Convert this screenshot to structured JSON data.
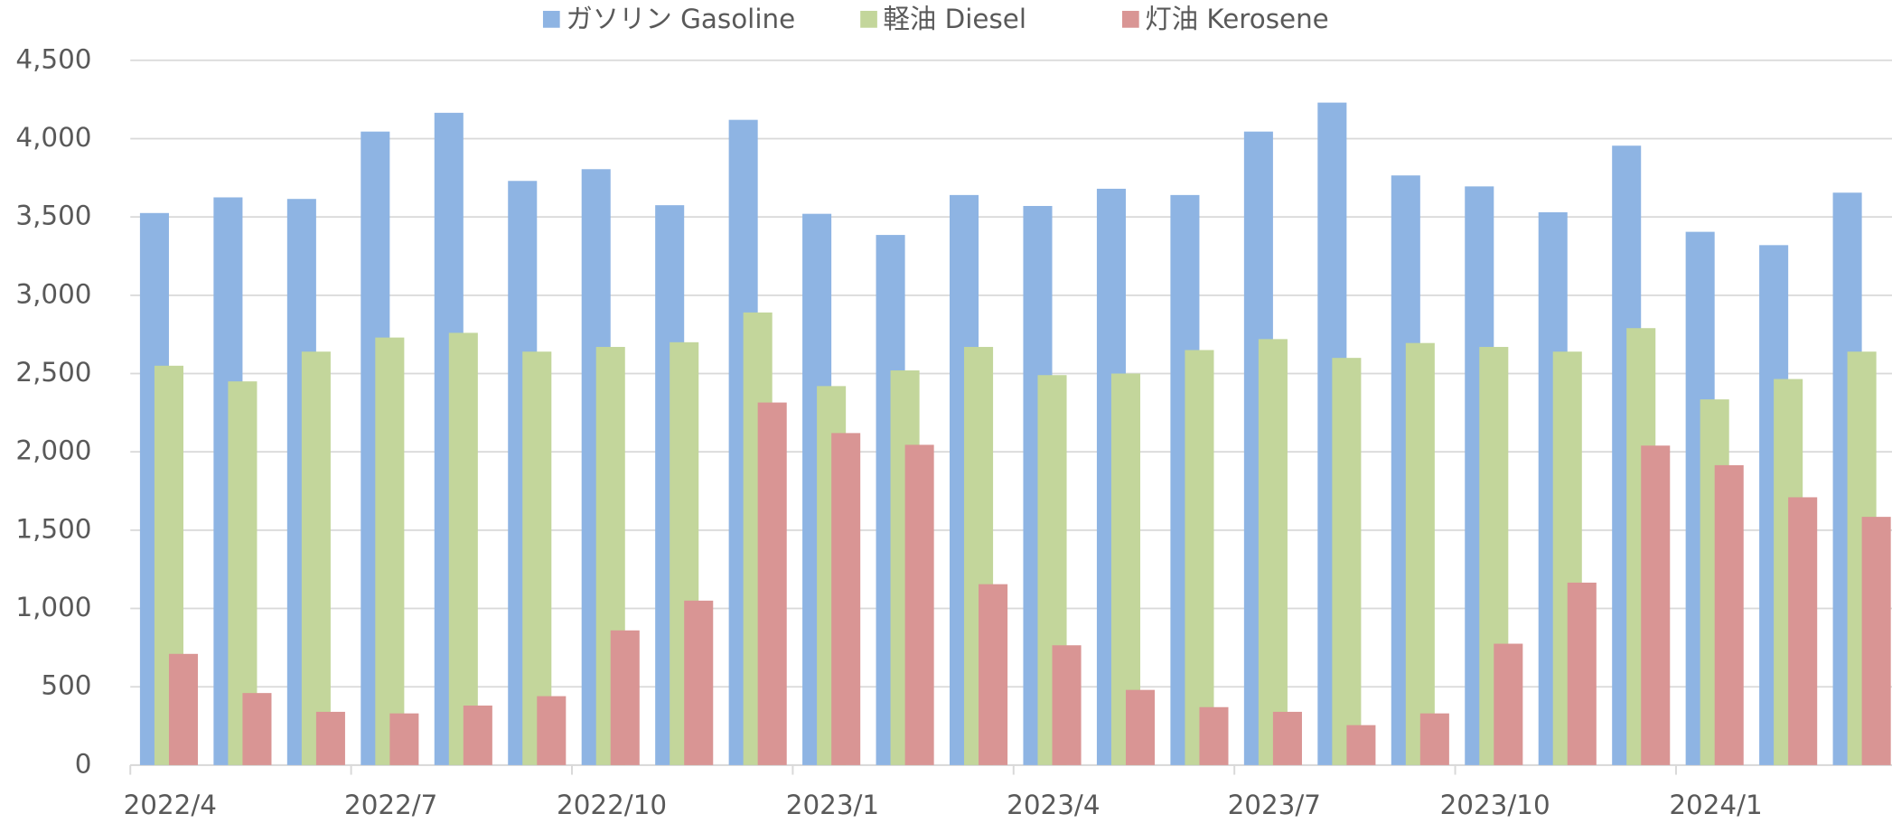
{
  "chart_data": {
    "type": "bar",
    "categories": [
      "2022/4",
      null,
      null,
      "2022/7",
      null,
      null,
      "2022/10",
      null,
      null,
      "2023/1",
      null,
      null,
      "2023/4",
      null,
      null,
      "2023/7",
      null,
      null,
      "2023/10",
      null,
      null,
      "2024/1",
      null,
      null
    ],
    "series": [
      {
        "name": "ガソリン Gasoline",
        "color": "#8eb4e3",
        "values": [
          3525,
          3625,
          3615,
          4045,
          4165,
          3730,
          3805,
          3575,
          4120,
          3520,
          3385,
          3640,
          3570,
          3680,
          3640,
          4045,
          4230,
          3765,
          3695,
          3530,
          3955,
          3405,
          3320,
          3655
        ]
      },
      {
        "name": "軽油 Diesel",
        "color": "#c3d69b",
        "values": [
          2550,
          2450,
          2640,
          2730,
          2760,
          2640,
          2670,
          2700,
          2890,
          2420,
          2520,
          2670,
          2490,
          2500,
          2650,
          2720,
          2600,
          2695,
          2670,
          2640,
          2790,
          2335,
          2465,
          2640
        ]
      },
      {
        "name": "灯油 Kerosene",
        "color": "#d99594",
        "values": [
          710,
          460,
          340,
          330,
          380,
          440,
          860,
          1050,
          2315,
          2120,
          2045,
          1155,
          765,
          480,
          370,
          340,
          255,
          330,
          775,
          1165,
          2040,
          1915,
          1710,
          1585
        ]
      }
    ],
    "ylim": [
      0,
      4500
    ],
    "yticks": [
      0,
      {
        "value": 500,
        "label": "500"
      },
      {
        "value": 1000,
        "label": "1,000"
      },
      {
        "value": 1500,
        "label": "1,500"
      },
      {
        "value": 2000,
        "label": "2,000"
      },
      {
        "value": 2500,
        "label": "2,500"
      },
      {
        "value": 3000,
        "label": "3,000"
      },
      {
        "value": 3500,
        "label": "3,500"
      },
      {
        "value": 4000,
        "label": "4,000"
      },
      {
        "value": 4500,
        "label": "4,500"
      }
    ],
    "grid": true,
    "legend": "top"
  }
}
